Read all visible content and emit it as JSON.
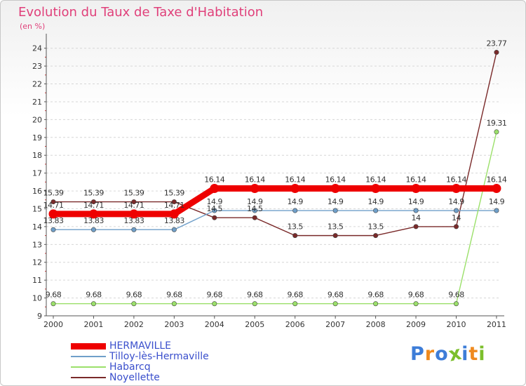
{
  "chart_data": {
    "type": "line",
    "title": "Evolution du Taux de Taxe d'Habitation",
    "subtitle": "(en %)",
    "xlabel": "",
    "ylabel": "(en %)",
    "ylim": [
      9,
      24.5
    ],
    "y_ticks": [
      9,
      10,
      11,
      12,
      13,
      14,
      15,
      16,
      17,
      18,
      19,
      20,
      21,
      22,
      23,
      24
    ],
    "x": [
      "2000",
      "2001",
      "2002",
      "2003",
      "2004",
      "2005",
      "2006",
      "2007",
      "2008",
      "2009",
      "2010",
      "2011"
    ],
    "grid": "horizontal-dashed",
    "series": [
      {
        "name": "HERMAVILLE",
        "color": "#ee0000",
        "emphasis": true,
        "values": [
          14.71,
          14.71,
          14.71,
          14.71,
          16.14,
          16.14,
          16.14,
          16.14,
          16.14,
          16.14,
          16.14,
          16.14
        ],
        "labels": [
          "14.71",
          "14.71",
          "14.71",
          "14.71",
          "16.14",
          "16.14",
          "16.14",
          "16.14",
          "16.14",
          "16.14",
          "16.14",
          "16.14"
        ]
      },
      {
        "name": "Tilloy-lès-Hermaville",
        "color": "#6f9fc9",
        "emphasis": false,
        "values": [
          13.83,
          13.83,
          13.83,
          13.83,
          14.9,
          14.9,
          14.9,
          14.9,
          14.9,
          14.9,
          14.9,
          14.9
        ],
        "labels": [
          "13.83",
          "13.83",
          "13.83",
          "13.83",
          "14.9",
          "14.9",
          "14.9",
          "14.9",
          "14.9",
          "14.9",
          "14.9",
          "14.9"
        ]
      },
      {
        "name": "Habarcq",
        "color": "#9be06a",
        "emphasis": false,
        "values": [
          9.68,
          9.68,
          9.68,
          9.68,
          9.68,
          9.68,
          9.68,
          9.68,
          9.68,
          9.68,
          9.68,
          19.31
        ],
        "labels": [
          "9.68",
          "9.68",
          "9.68",
          "9.68",
          "9.68",
          "9.68",
          "9.68",
          "9.68",
          "9.68",
          "9.68",
          "9.68",
          "19.31"
        ]
      },
      {
        "name": "Noyellette",
        "color": "#7a2a2a",
        "emphasis": false,
        "values": [
          15.39,
          15.39,
          15.39,
          15.39,
          14.5,
          14.5,
          13.5,
          13.5,
          13.5,
          14,
          14,
          23.77
        ],
        "labels": [
          "15.39",
          "15.39",
          "15.39",
          "15.39",
          "14.5",
          "14.5",
          "13.5",
          "13.5",
          "13.5",
          "14",
          "14",
          "23.77"
        ]
      }
    ]
  },
  "logo": {
    "letters": [
      "P",
      "r",
      "o",
      "x",
      "i",
      "t",
      "i"
    ],
    "colors": [
      "#3d7dd8",
      "#ef8a1e",
      "#3d7dd8",
      "#7cbf2c",
      "#3d7dd8",
      "#ef8a1e",
      "#7cbf2c"
    ]
  }
}
